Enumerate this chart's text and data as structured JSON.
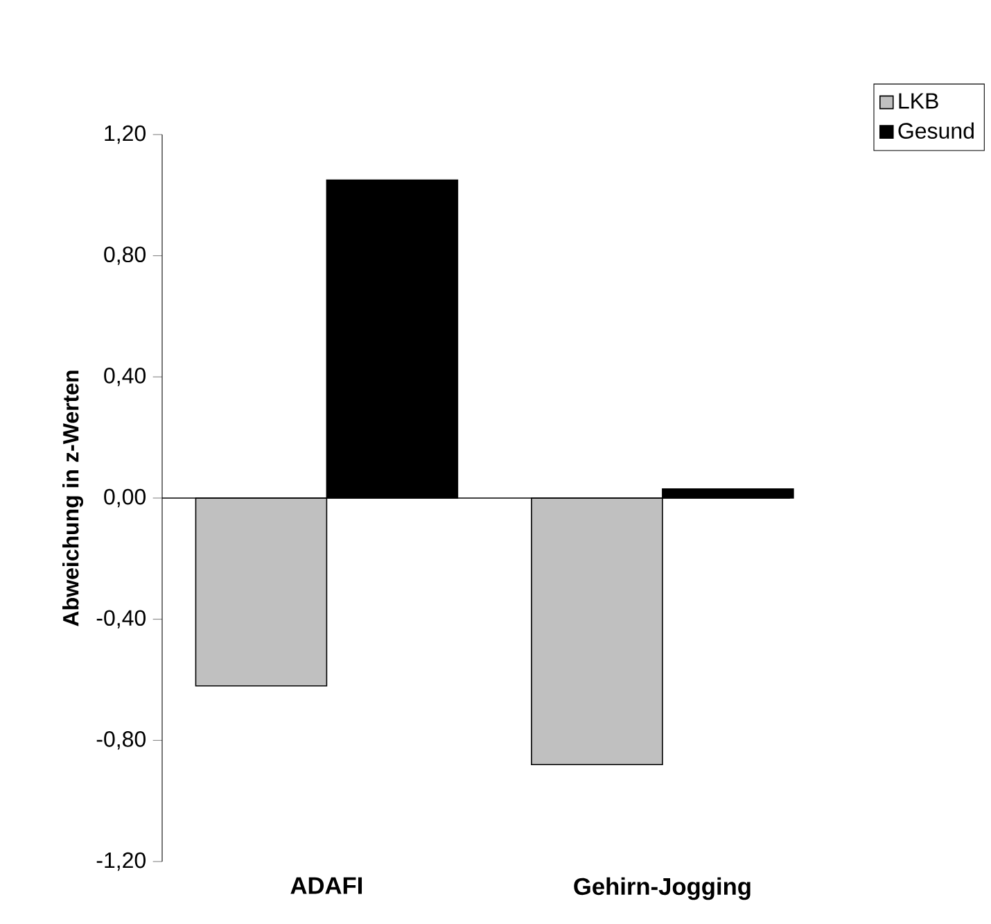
{
  "chart_data": {
    "type": "bar",
    "ylabel": "Abweichung in z-Werten",
    "categories": [
      "ADAFI",
      "Gehirn-Jogging"
    ],
    "series": [
      {
        "name": "LKB",
        "color": "#c0c0c0",
        "values": [
          -0.62,
          -0.88
        ]
      },
      {
        "name": "Gesund",
        "color": "#000000",
        "values": [
          1.05,
          0.03
        ]
      }
    ],
    "ylim": [
      -1.2,
      1.2
    ],
    "yticks": [
      {
        "value": -1.2,
        "label": "-1,20"
      },
      {
        "value": -0.8,
        "label": "-0,80"
      },
      {
        "value": -0.4,
        "label": "-0,40"
      },
      {
        "value": 0,
        "label": "0,00"
      },
      {
        "value": 0.4,
        "label": "0,40"
      },
      {
        "value": 0.8,
        "label": "0,80"
      },
      {
        "value": 1.2,
        "label": "1,20"
      }
    ],
    "legend": "top right"
  }
}
